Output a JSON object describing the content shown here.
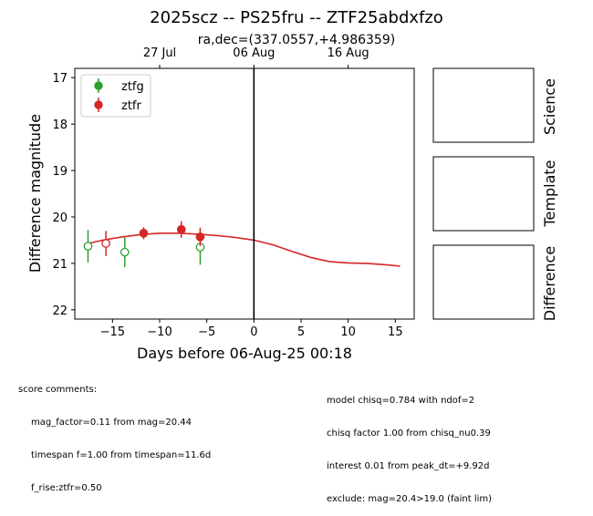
{
  "title": "2025scz -- PS25fru -- ZTF25abdxfzo",
  "subtitle": "ra,dec=(337.0557,+4.986359)",
  "chart_data": {
    "type": "scatter",
    "xlabel": "Days before 06-Aug-25 00:18",
    "ylabel": "Difference magnitude",
    "xlim": [
      -19,
      17
    ],
    "ylim": [
      22.2,
      16.8
    ],
    "y_inverted": true,
    "x_ticks": [
      -15,
      -10,
      -5,
      0,
      5,
      10,
      15
    ],
    "x_tick_labels": [
      "−15",
      "−10",
      "−5",
      "0",
      "5",
      "10",
      "15"
    ],
    "y_ticks": [
      17,
      18,
      19,
      20,
      21,
      22
    ],
    "y_tick_labels": [
      "17",
      "18",
      "19",
      "20",
      "21",
      "22"
    ],
    "top_axis_ticks": [
      {
        "x": -10.0,
        "label": "27 Jul"
      },
      {
        "x": 0.0,
        "label": "06 Aug"
      },
      {
        "x": 10.0,
        "label": "16 Aug"
      }
    ],
    "reference_line_x": 0,
    "legend_position": "upper-left",
    "series": [
      {
        "name": "ztfg",
        "color": "#2ca02c",
        "points": [
          {
            "x": -17.6,
            "y": 20.63,
            "err": 0.35,
            "filled": false
          },
          {
            "x": -13.7,
            "y": 20.76,
            "err": 0.32,
            "filled": false
          },
          {
            "x": -5.7,
            "y": 20.65,
            "err": 0.38,
            "filled": false
          }
        ]
      },
      {
        "name": "ztfr",
        "color": "#d62728",
        "points": [
          {
            "x": -15.7,
            "y": 20.57,
            "err": 0.27,
            "filled": false
          },
          {
            "x": -11.7,
            "y": 20.35,
            "err": 0.13,
            "filled": true
          },
          {
            "x": -7.7,
            "y": 20.27,
            "err": 0.18,
            "filled": true
          },
          {
            "x": -5.7,
            "y": 20.43,
            "err": 0.2,
            "filled": true
          }
        ]
      }
    ],
    "model_curve": {
      "color": "#d62728",
      "x": [
        -17.8,
        -16,
        -14,
        -12,
        -10,
        -8,
        -6,
        -4,
        -2,
        0,
        2,
        4,
        6,
        8,
        10,
        12,
        14,
        15.5
      ],
      "y": [
        20.58,
        20.5,
        20.43,
        20.38,
        20.35,
        20.35,
        20.37,
        20.4,
        20.44,
        20.5,
        20.6,
        20.74,
        20.87,
        20.96,
        20.99,
        21.0,
        21.03,
        21.06
      ]
    }
  },
  "panels": {
    "science_label": "Science",
    "template_label": "Template",
    "difference_label": "Difference"
  },
  "comments": {
    "score_header": "score comments:",
    "score_lines": [
      "mag_factor=0.11 from mag=20.44",
      "timespan f=1.00 from timespan=11.6d",
      "f_rise:ztfr=0.50"
    ],
    "model_lines": [
      "model chisq=0.784 with ndof=2",
      "chisq factor 1.00 from chisq_nu0.39",
      "interest 0.01 from peak_dt=+9.92d",
      "exclude: mag=20.4>19.0 (faint lim)"
    ]
  }
}
